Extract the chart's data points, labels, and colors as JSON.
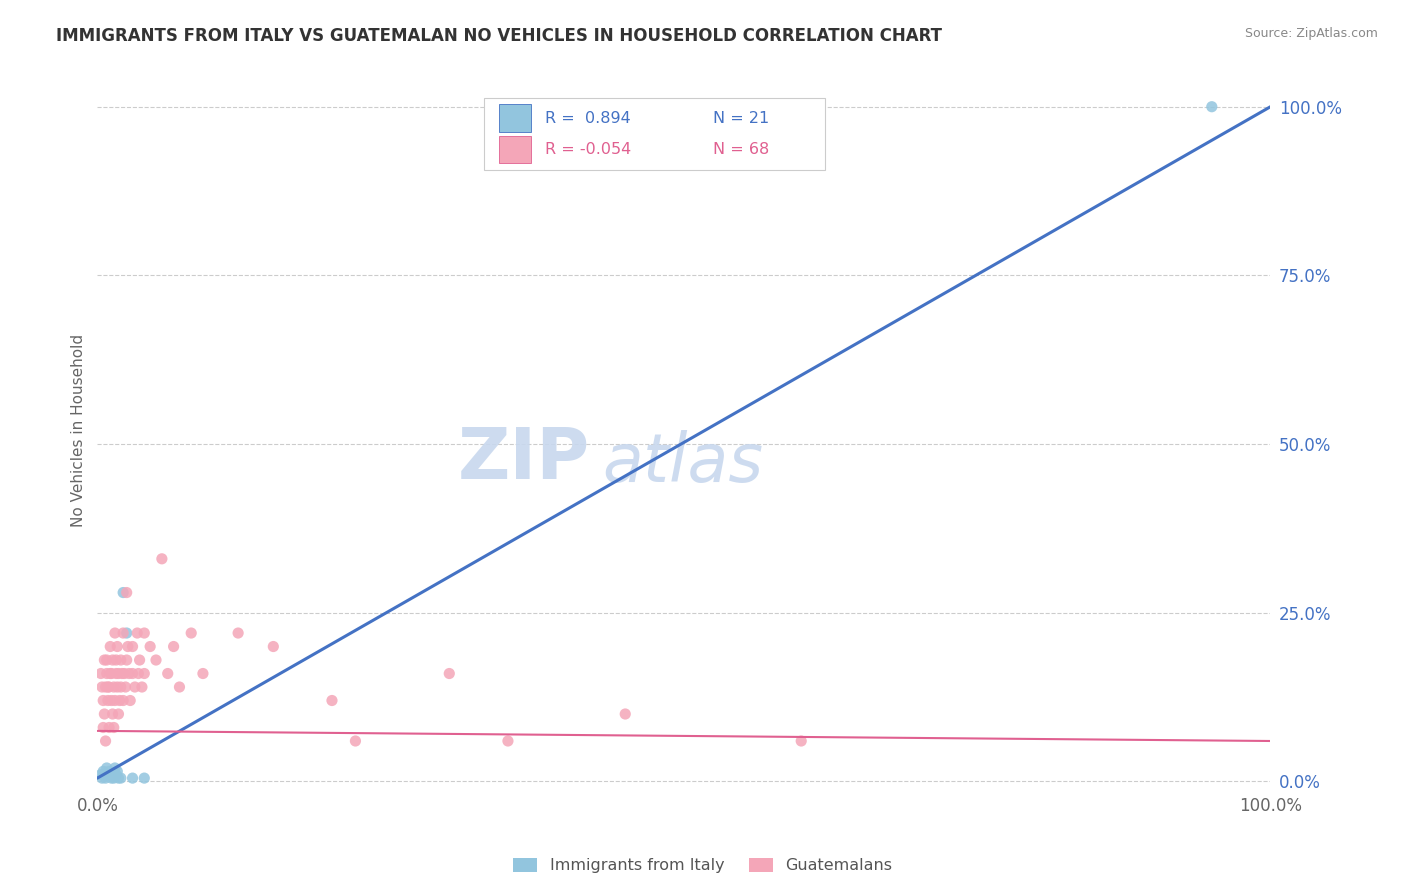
{
  "title": "IMMIGRANTS FROM ITALY VS GUATEMALAN NO VEHICLES IN HOUSEHOLD CORRELATION CHART",
  "source": "Source: ZipAtlas.com",
  "ylabel": "No Vehicles in Household",
  "xlim": [
    0,
    1.0
  ],
  "ylim": [
    0,
    1.0
  ],
  "ytick_positions": [
    0.0,
    0.25,
    0.5,
    0.75,
    1.0
  ],
  "color_italy": "#92c5de",
  "color_guatemala": "#f4a6b8",
  "line_color_italy": "#4472c4",
  "line_color_guatemala": "#e06090",
  "watermark_zip": "ZIP",
  "watermark_atlas": "atlas",
  "background_color": "#ffffff",
  "italy_r": 0.894,
  "italy_n": 21,
  "guatemala_r": -0.054,
  "guatemala_n": 68,
  "italy_line_x0": 0.0,
  "italy_line_y0": 0.005,
  "italy_line_x1": 1.0,
  "italy_line_y1": 1.0,
  "guatemala_line_x0": 0.0,
  "guatemala_line_y0": 0.075,
  "guatemala_line_x1": 1.0,
  "guatemala_line_y1": 0.06,
  "italy_scatter": [
    [
      0.003,
      0.01
    ],
    [
      0.004,
      0.005
    ],
    [
      0.005,
      0.015
    ],
    [
      0.006,
      0.01
    ],
    [
      0.007,
      0.005
    ],
    [
      0.008,
      0.02
    ],
    [
      0.009,
      0.01
    ],
    [
      0.01,
      0.015
    ],
    [
      0.012,
      0.005
    ],
    [
      0.013,
      0.01
    ],
    [
      0.014,
      0.005
    ],
    [
      0.015,
      0.02
    ],
    [
      0.016,
      0.01
    ],
    [
      0.017,
      0.015
    ],
    [
      0.018,
      0.005
    ],
    [
      0.02,
      0.005
    ],
    [
      0.022,
      0.28
    ],
    [
      0.025,
      0.22
    ],
    [
      0.03,
      0.005
    ],
    [
      0.04,
      0.005
    ],
    [
      0.95,
      1.0
    ]
  ],
  "guatemala_scatter": [
    [
      0.003,
      0.16
    ],
    [
      0.004,
      0.14
    ],
    [
      0.005,
      0.08
    ],
    [
      0.005,
      0.12
    ],
    [
      0.006,
      0.18
    ],
    [
      0.006,
      0.1
    ],
    [
      0.007,
      0.14
    ],
    [
      0.007,
      0.06
    ],
    [
      0.008,
      0.16
    ],
    [
      0.008,
      0.18
    ],
    [
      0.009,
      0.12
    ],
    [
      0.009,
      0.14
    ],
    [
      0.01,
      0.08
    ],
    [
      0.01,
      0.14
    ],
    [
      0.011,
      0.16
    ],
    [
      0.011,
      0.2
    ],
    [
      0.012,
      0.12
    ],
    [
      0.012,
      0.16
    ],
    [
      0.013,
      0.18
    ],
    [
      0.013,
      0.1
    ],
    [
      0.014,
      0.14
    ],
    [
      0.014,
      0.08
    ],
    [
      0.015,
      0.22
    ],
    [
      0.015,
      0.12
    ],
    [
      0.016,
      0.18
    ],
    [
      0.016,
      0.16
    ],
    [
      0.017,
      0.14
    ],
    [
      0.017,
      0.2
    ],
    [
      0.018,
      0.1
    ],
    [
      0.018,
      0.16
    ],
    [
      0.019,
      0.12
    ],
    [
      0.02,
      0.18
    ],
    [
      0.02,
      0.14
    ],
    [
      0.021,
      0.16
    ],
    [
      0.022,
      0.22
    ],
    [
      0.022,
      0.12
    ],
    [
      0.023,
      0.16
    ],
    [
      0.024,
      0.14
    ],
    [
      0.025,
      0.18
    ],
    [
      0.025,
      0.28
    ],
    [
      0.026,
      0.2
    ],
    [
      0.027,
      0.16
    ],
    [
      0.028,
      0.12
    ],
    [
      0.03,
      0.2
    ],
    [
      0.03,
      0.16
    ],
    [
      0.032,
      0.14
    ],
    [
      0.034,
      0.22
    ],
    [
      0.035,
      0.16
    ],
    [
      0.036,
      0.18
    ],
    [
      0.038,
      0.14
    ],
    [
      0.04,
      0.22
    ],
    [
      0.04,
      0.16
    ],
    [
      0.045,
      0.2
    ],
    [
      0.05,
      0.18
    ],
    [
      0.055,
      0.33
    ],
    [
      0.06,
      0.16
    ],
    [
      0.065,
      0.2
    ],
    [
      0.07,
      0.14
    ],
    [
      0.08,
      0.22
    ],
    [
      0.09,
      0.16
    ],
    [
      0.12,
      0.22
    ],
    [
      0.15,
      0.2
    ],
    [
      0.2,
      0.12
    ],
    [
      0.22,
      0.06
    ],
    [
      0.3,
      0.16
    ],
    [
      0.35,
      0.06
    ],
    [
      0.45,
      0.1
    ],
    [
      0.6,
      0.06
    ]
  ]
}
